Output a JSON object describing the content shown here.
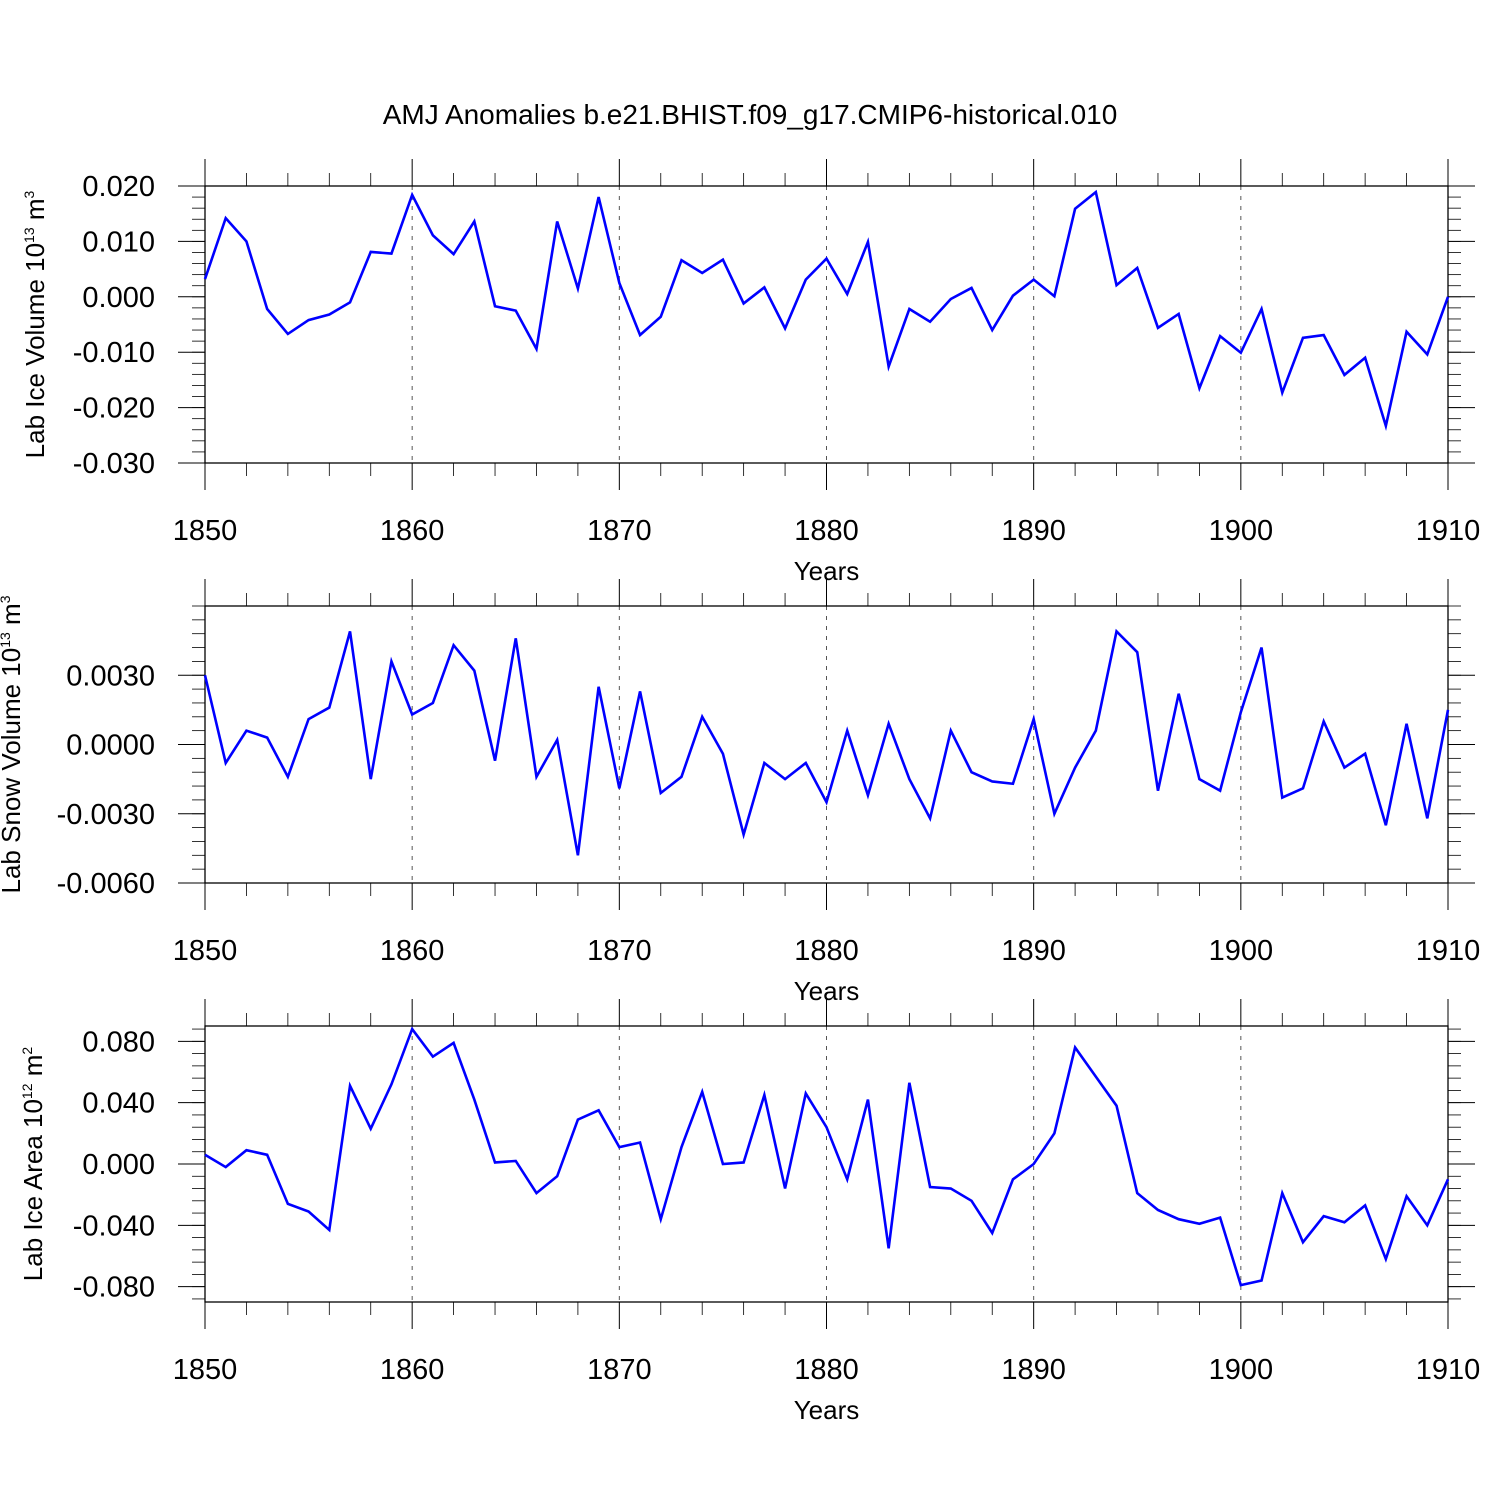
{
  "title": "AMJ Anomalies b.e21.BHIST.f09_g17.CMIP6-historical.010",
  "colors": {
    "line": "#0000ff",
    "axis": "#000000",
    "grid": "#555555"
  },
  "chart_data": [
    {
      "type": "line",
      "ylabel": {
        "text": "Lab Ice Volume 10",
        "exp1": "13",
        "unit": " m",
        "exp2": "3"
      },
      "xlabel": "Years",
      "xlim": [
        1850,
        1910
      ],
      "ylim": [
        -0.03,
        0.02
      ],
      "yticks": [
        -0.03,
        -0.02,
        -0.01,
        0.0,
        0.01,
        0.02
      ],
      "ytick_labels": [
        "-0.030",
        "-0.020",
        "-0.010",
        "0.000",
        "0.010",
        "0.020"
      ],
      "xticks": [
        1850,
        1860,
        1870,
        1880,
        1890,
        1900,
        1910
      ],
      "xtick_labels": [
        "1850",
        "1860",
        "1870",
        "1880",
        "1890",
        "1900",
        "1910"
      ],
      "grid_x": [
        1860,
        1870,
        1880,
        1890,
        1900
      ],
      "x_start": 1850,
      "values": [
        0.0032,
        0.0142,
        0.01,
        -0.0022,
        -0.0067,
        -0.0042,
        -0.0032,
        -0.001,
        0.0081,
        0.0078,
        0.0184,
        0.0111,
        0.0077,
        0.0136,
        -0.0017,
        -0.0025,
        -0.0094,
        0.0136,
        0.0015,
        0.018,
        0.0025,
        -0.0069,
        -0.0036,
        0.0066,
        0.0043,
        0.0067,
        -0.0012,
        0.0017,
        -0.0057,
        0.0031,
        0.0069,
        0.0005,
        0.0099,
        -0.0126,
        -0.0022,
        -0.0045,
        -0.0004,
        0.0016,
        -0.006,
        0.0002,
        0.0031,
        0.0001,
        0.0159,
        0.0189,
        0.0021,
        0.0052,
        -0.0056,
        -0.0031,
        -0.0165,
        -0.0071,
        -0.0101,
        -0.0022,
        -0.0173,
        -0.0074,
        -0.0069,
        -0.0141,
        -0.011,
        -0.0233,
        -0.0063,
        -0.0104,
        0.0
      ]
    },
    {
      "type": "line",
      "ylabel": {
        "text": "Lab Snow Volume 10",
        "exp1": "13",
        "unit": " m",
        "exp2": "3"
      },
      "xlabel": "Years",
      "xlim": [
        1850,
        1910
      ],
      "ylim": [
        -0.006,
        0.006
      ],
      "yticks": [
        -0.006,
        -0.003,
        0.0,
        0.003
      ],
      "ytick_labels": [
        "-0.0060",
        "-0.0030",
        "0.0000",
        "0.0030"
      ],
      "xticks": [
        1850,
        1860,
        1870,
        1880,
        1890,
        1900,
        1910
      ],
      "xtick_labels": [
        "1850",
        "1860",
        "1870",
        "1880",
        "1890",
        "1900",
        "1910"
      ],
      "grid_x": [
        1860,
        1870,
        1880,
        1890,
        1900
      ],
      "x_start": 1850,
      "values": [
        0.003,
        -0.0008,
        0.0006,
        0.0003,
        -0.0014,
        0.0011,
        0.0016,
        0.0049,
        -0.0015,
        0.0036,
        0.0013,
        0.0018,
        0.0043,
        0.0032,
        -0.0007,
        0.0046,
        -0.0014,
        0.0002,
        -0.0048,
        0.0025,
        -0.0019,
        0.0023,
        -0.0021,
        -0.0014,
        0.0012,
        -0.0004,
        -0.0039,
        -0.0008,
        -0.0015,
        -0.0008,
        -0.0025,
        0.0006,
        -0.0022,
        0.0009,
        -0.0015,
        -0.0032,
        0.0006,
        -0.0012,
        -0.0016,
        -0.0017,
        0.0011,
        -0.003,
        -0.001,
        0.0006,
        0.0049,
        0.004,
        -0.002,
        0.0022,
        -0.0015,
        -0.002,
        0.0014,
        0.0042,
        -0.0023,
        -0.0019,
        0.001,
        -0.001,
        -0.0004,
        -0.0035,
        0.0009,
        -0.0032,
        0.0015
      ]
    },
    {
      "type": "line",
      "ylabel": {
        "text": "Lab Ice Area 10",
        "exp1": "12",
        "unit": " m",
        "exp2": "2"
      },
      "xlabel": "Years",
      "xlim": [
        1850,
        1910
      ],
      "ylim": [
        -0.09,
        0.09
      ],
      "yticks": [
        -0.08,
        -0.04,
        0.0,
        0.04,
        0.08
      ],
      "ytick_labels": [
        "-0.080",
        "-0.040",
        "0.000",
        "0.040",
        "0.080"
      ],
      "xticks": [
        1850,
        1860,
        1870,
        1880,
        1890,
        1900,
        1910
      ],
      "xtick_labels": [
        "1850",
        "1860",
        "1870",
        "1880",
        "1890",
        "1900",
        "1910"
      ],
      "grid_x": [
        1860,
        1870,
        1880,
        1890,
        1900
      ],
      "x_start": 1850,
      "values": [
        0.006,
        -0.002,
        0.009,
        0.006,
        -0.026,
        -0.031,
        -0.043,
        0.051,
        0.023,
        0.052,
        0.088,
        0.07,
        0.079,
        0.042,
        0.001,
        0.002,
        -0.019,
        -0.008,
        0.029,
        0.035,
        0.011,
        0.014,
        -0.036,
        0.011,
        0.047,
        0.0,
        0.001,
        0.045,
        -0.016,
        0.046,
        0.024,
        -0.01,
        0.042,
        -0.055,
        0.053,
        -0.015,
        -0.016,
        -0.024,
        -0.045,
        -0.01,
        0.0,
        0.02,
        0.076,
        0.057,
        0.038,
        -0.019,
        -0.03,
        -0.036,
        -0.039,
        -0.035,
        -0.079,
        -0.076,
        -0.019,
        -0.051,
        -0.034,
        -0.038,
        -0.027,
        -0.062,
        -0.021,
        -0.04,
        -0.01
      ]
    }
  ]
}
